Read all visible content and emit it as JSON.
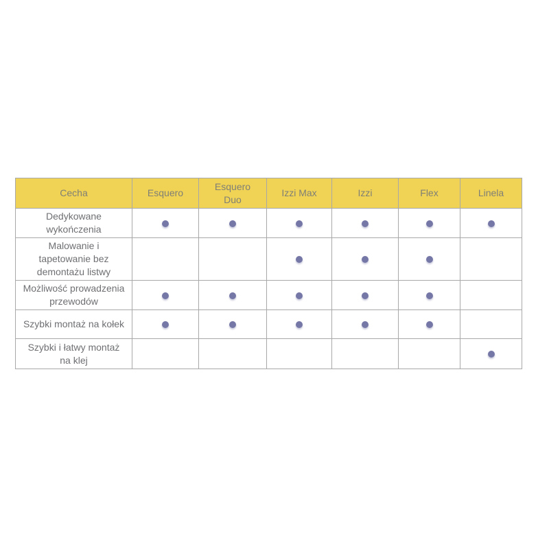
{
  "page": {
    "background_color": "#ffffff"
  },
  "table": {
    "columns": [
      {
        "label": "Cecha"
      },
      {
        "label": "Esquero"
      },
      {
        "label": "Esquero\nDuo"
      },
      {
        "label": "Izzi Max"
      },
      {
        "label": "Izzi"
      },
      {
        "label": "Flex"
      },
      {
        "label": "Linela"
      }
    ],
    "rows": [
      {
        "feature": "Dedykowane\nwykończenia",
        "availability": [
          true,
          true,
          true,
          true,
          true,
          true
        ]
      },
      {
        "feature": "Malowanie i\ntapetowanie bez\ndemontażu listwy",
        "availability": [
          false,
          false,
          true,
          true,
          true,
          false
        ]
      },
      {
        "feature": "Możliwość prowadzenia\nprzewodów",
        "availability": [
          true,
          true,
          true,
          true,
          true,
          false
        ]
      },
      {
        "feature": "Szybki montaż na kołek",
        "availability": [
          true,
          true,
          true,
          true,
          true,
          false
        ]
      },
      {
        "feature": "Szybki i łatwy montaż\nna klej",
        "availability": [
          false,
          false,
          false,
          false,
          false,
          true
        ]
      }
    ],
    "availability_marker": "filled-circle-dot",
    "colors": {
      "header_background": "#f0d355",
      "header_text": "#7f7f76",
      "body_text": "#6e6f72",
      "grid_line": "#a8a8a8",
      "outer_border": "#8c8c8c",
      "dot": "#7577a6"
    }
  }
}
